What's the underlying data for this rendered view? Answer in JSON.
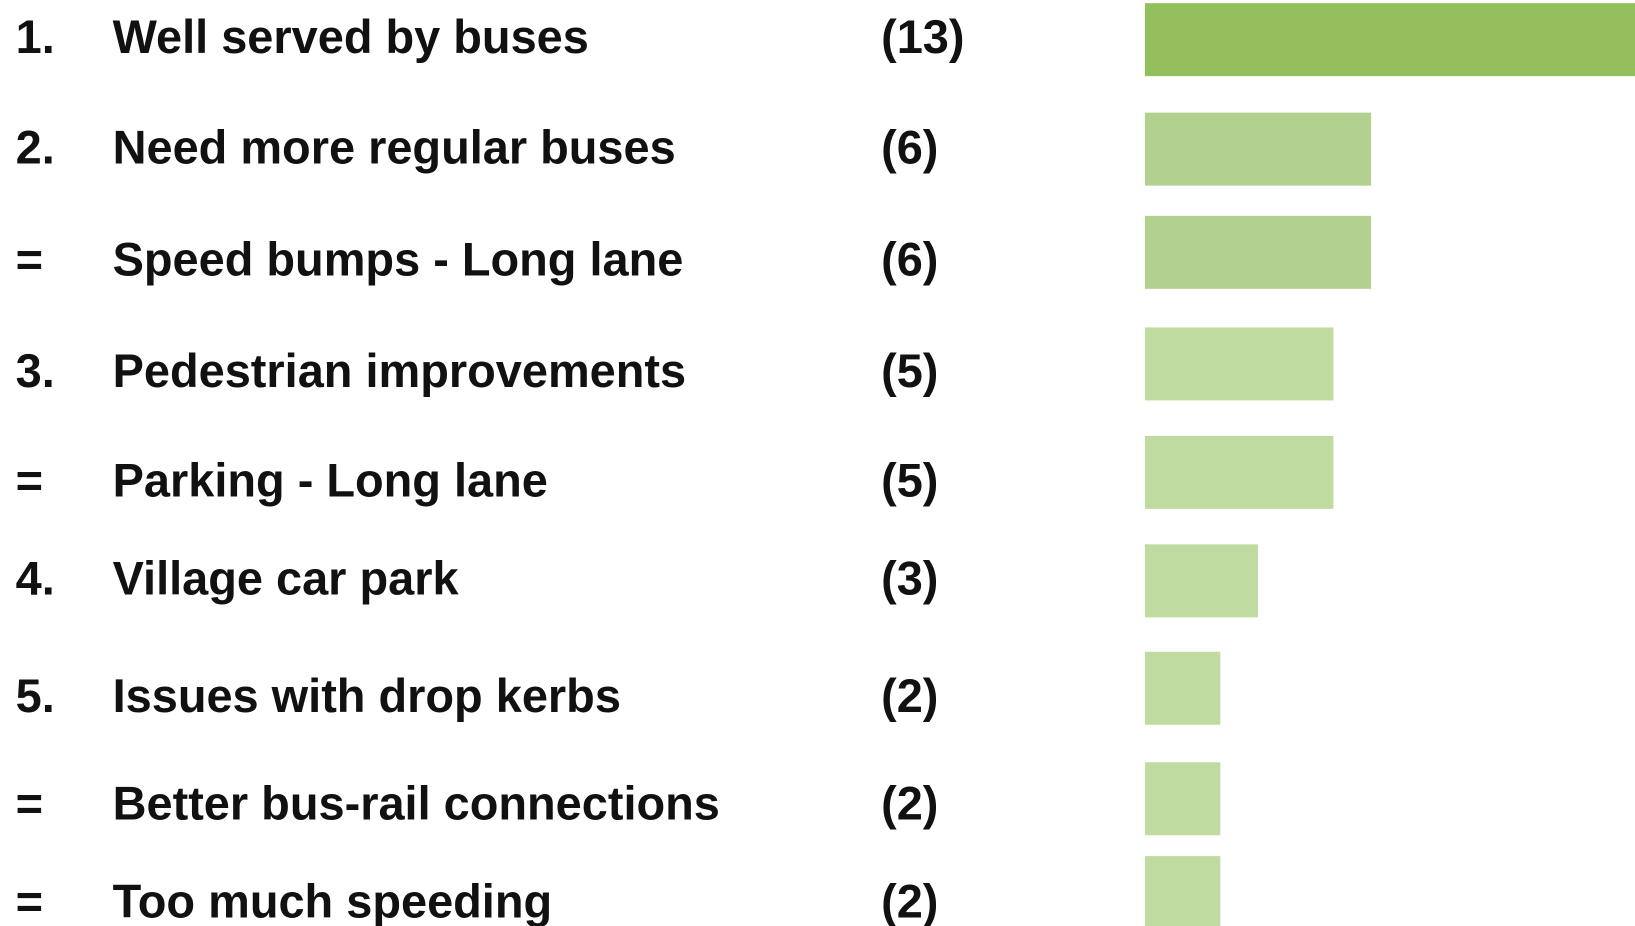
{
  "chart_data": {
    "type": "bar",
    "ranks": [
      "1.",
      "2.",
      "=",
      "3.",
      "=",
      "4.",
      "5.",
      "=",
      "="
    ],
    "categories": [
      "Well served by buses",
      "Need more regular buses",
      "Speed bumps - Long lane",
      "Pedestrian improvements",
      "Parking - Long lane",
      "Village car park",
      "Issues with drop kerbs",
      "Better bus-rail connections",
      "Too much speeding"
    ],
    "values": [
      13,
      6,
      6,
      5,
      5,
      3,
      2,
      2,
      2
    ],
    "value_labels": [
      "(13)",
      "(6)",
      "(6)",
      "(5)",
      "(5)",
      "(3)",
      "(2)",
      "(2)",
      "(2)"
    ],
    "colors": [
      "#93c05c",
      "#b2d08e",
      "#b2d08e",
      "#c0dba0",
      "#c0dba0",
      "#c0dba0",
      "#c0dba0",
      "#c0dba0",
      "#c0dba0"
    ]
  }
}
